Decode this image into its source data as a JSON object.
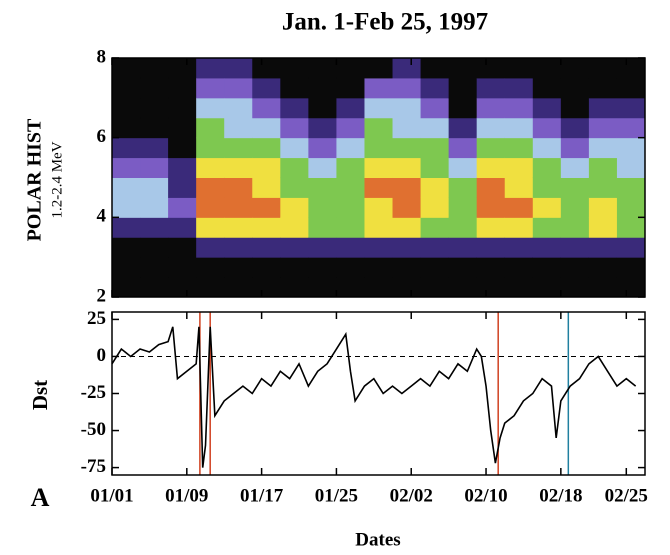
{
  "chart_data": [
    {
      "type": "heatmap",
      "title": "Jan. 1-Feb 25, 1997",
      "ylabel": "POLAR HIST",
      "ylabel2": "1.2-2.4 MeV",
      "xlim": [
        0,
        57
      ],
      "ylim": [
        2,
        8
      ],
      "yticks": [
        2,
        4,
        6,
        8
      ],
      "x_edges": [
        0,
        3,
        6,
        9,
        12,
        15,
        18,
        21,
        24,
        27,
        30,
        33,
        36,
        39,
        42,
        45,
        48,
        51,
        54,
        57
      ],
      "y_edges": [
        2,
        2.5,
        3,
        3.5,
        4,
        4.5,
        5,
        5.5,
        6,
        6.5,
        7,
        7.5,
        8
      ],
      "colors": [
        "#0a0a0a",
        "#3a2a7a",
        "#7b5cc4",
        "#a8c8e8",
        "#7ec850",
        "#f0e040",
        "#e07030"
      ],
      "z": [
        [
          0,
          0,
          0,
          1,
          3,
          3,
          2,
          1,
          0,
          0,
          0,
          0
        ],
        [
          0,
          0,
          0,
          1,
          3,
          3,
          2,
          1,
          0,
          0,
          0,
          0
        ],
        [
          0,
          0,
          0,
          1,
          2,
          1,
          1,
          0,
          0,
          0,
          0,
          0
        ],
        [
          0,
          0,
          1,
          5,
          6,
          6,
          5,
          4,
          4,
          3,
          2,
          1
        ],
        [
          0,
          0,
          1,
          5,
          6,
          6,
          5,
          4,
          3,
          3,
          2,
          1
        ],
        [
          0,
          0,
          1,
          5,
          6,
          5,
          5,
          4,
          3,
          2,
          1,
          0
        ],
        [
          0,
          0,
          1,
          5,
          5,
          4,
          4,
          3,
          2,
          1,
          0,
          0
        ],
        [
          0,
          0,
          1,
          4,
          4,
          4,
          3,
          2,
          1,
          0,
          0,
          0
        ],
        [
          0,
          0,
          1,
          4,
          4,
          4,
          4,
          3,
          2,
          1,
          0,
          0
        ],
        [
          0,
          0,
          1,
          5,
          5,
          6,
          5,
          4,
          4,
          3,
          2,
          0
        ],
        [
          0,
          0,
          1,
          5,
          6,
          6,
          5,
          4,
          3,
          3,
          2,
          1
        ],
        [
          0,
          0,
          1,
          4,
          5,
          5,
          4,
          4,
          3,
          2,
          1,
          0
        ],
        [
          0,
          0,
          1,
          4,
          4,
          4,
          3,
          2,
          1,
          0,
          0,
          0
        ],
        [
          0,
          0,
          1,
          5,
          6,
          6,
          5,
          4,
          3,
          2,
          1,
          0
        ],
        [
          0,
          0,
          1,
          5,
          6,
          5,
          5,
          4,
          3,
          2,
          1,
          0
        ],
        [
          0,
          0,
          1,
          4,
          5,
          4,
          4,
          3,
          2,
          1,
          0,
          0
        ],
        [
          0,
          0,
          1,
          4,
          4,
          4,
          3,
          2,
          1,
          0,
          0,
          0
        ],
        [
          0,
          0,
          1,
          5,
          5,
          4,
          4,
          3,
          2,
          1,
          0,
          0
        ],
        [
          0,
          0,
          1,
          4,
          4,
          4,
          3,
          3,
          2,
          1,
          0,
          0
        ]
      ]
    },
    {
      "type": "line",
      "ylabel": "Dst",
      "xlabel": "Dates",
      "panel_label": "A",
      "xlim": [
        0,
        57
      ],
      "ylim": [
        -80,
        30
      ],
      "yticks": [
        25,
        0,
        -25,
        -50,
        -75
      ],
      "xticks": [
        {
          "value": 0,
          "label": "01/01"
        },
        {
          "value": 8,
          "label": "01/09"
        },
        {
          "value": 16,
          "label": "01/17"
        },
        {
          "value": 24,
          "label": "01/25"
        },
        {
          "value": 32,
          "label": "02/02"
        },
        {
          "value": 40,
          "label": "02/10"
        },
        {
          "value": 48,
          "label": "02/18"
        },
        {
          "value": 55,
          "label": "02/25"
        }
      ],
      "hline": 0,
      "color": "#000000",
      "events": [
        {
          "x": 9.4,
          "color": "#d04020"
        },
        {
          "x": 10.5,
          "color": "#d04020"
        },
        {
          "x": 41.3,
          "color": "#d04020"
        },
        {
          "x": 48.8,
          "color": "#2080a0"
        }
      ],
      "x": [
        0,
        1,
        2,
        3,
        4,
        5,
        6,
        6.5,
        7,
        8,
        9,
        9.3,
        9.7,
        10,
        10.5,
        11,
        12,
        13,
        14,
        15,
        16,
        17,
        18,
        19,
        20,
        21,
        22,
        23,
        24,
        25,
        25.5,
        26,
        27,
        28,
        29,
        30,
        31,
        32,
        33,
        34,
        35,
        36,
        37,
        38,
        39,
        39.5,
        40,
        40.5,
        41,
        41.5,
        42,
        43,
        44,
        45,
        46,
        47,
        47.5,
        48,
        49,
        50,
        51,
        52,
        53,
        54,
        55,
        56
      ],
      "values": [
        -5,
        5,
        0,
        5,
        3,
        8,
        10,
        20,
        -15,
        -10,
        -5,
        20,
        -75,
        -60,
        20,
        -40,
        -30,
        -25,
        -20,
        -25,
        -15,
        -20,
        -10,
        -15,
        -5,
        -20,
        -10,
        -5,
        5,
        15,
        -10,
        -30,
        -20,
        -15,
        -25,
        -20,
        -25,
        -20,
        -15,
        -20,
        -10,
        -15,
        -5,
        -10,
        5,
        0,
        -20,
        -50,
        -72,
        -55,
        -45,
        -40,
        -30,
        -25,
        -15,
        -20,
        -55,
        -30,
        -20,
        -15,
        -5,
        0,
        -10,
        -20,
        -15,
        -20
      ]
    }
  ]
}
